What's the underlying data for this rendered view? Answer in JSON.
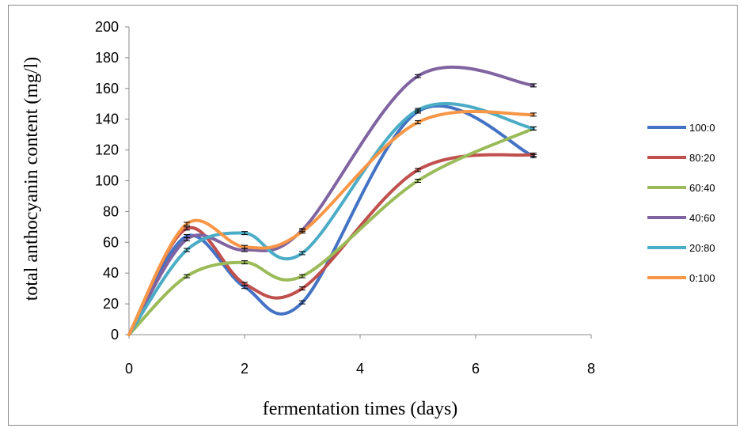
{
  "chart_data": {
    "type": "line",
    "xlabel": "fermentation times (days)",
    "ylabel": "total anthocyanin content (mg/l)",
    "xlim": [
      0,
      8
    ],
    "ylim": [
      0,
      200
    ],
    "x_ticks": [
      "0",
      "2",
      "4",
      "6",
      "8"
    ],
    "y_ticks": [
      "0",
      "20",
      "40",
      "60",
      "80",
      "100",
      "120",
      "140",
      "160",
      "180",
      "200"
    ],
    "x": [
      0,
      1,
      2,
      3,
      5,
      7
    ],
    "grid": false,
    "legend_position": "right",
    "series": [
      {
        "name": "100:0",
        "color": "#4472C4",
        "values": [
          0,
          64,
          31,
          21,
          145,
          116
        ]
      },
      {
        "name": "80:20",
        "color": "#C0504D",
        "values": [
          0,
          69,
          33,
          30,
          107,
          117
        ]
      },
      {
        "name": "60:40",
        "color": "#9BBB59",
        "values": [
          0,
          38,
          47,
          38,
          100,
          134
        ]
      },
      {
        "name": "40:60",
        "color": "#8064A2",
        "values": [
          0,
          62,
          55,
          68,
          168,
          162
        ]
      },
      {
        "name": "20:80",
        "color": "#4BACC6",
        "values": [
          0,
          55,
          66,
          53,
          146,
          134
        ]
      },
      {
        "name": "0:100",
        "color": "#F79646",
        "values": [
          0,
          72,
          57,
          67,
          138,
          143
        ]
      }
    ]
  }
}
